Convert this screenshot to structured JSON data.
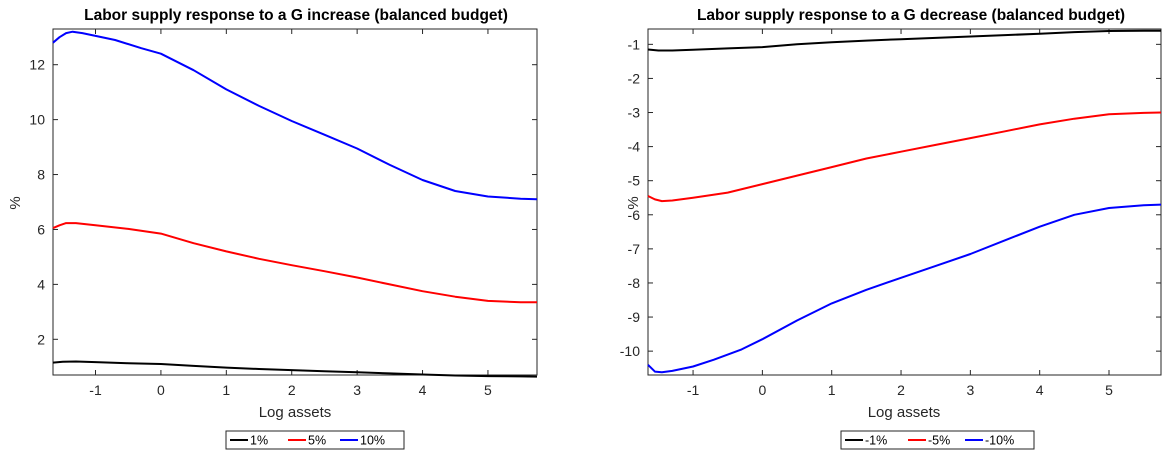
{
  "chart_data": [
    {
      "type": "line",
      "title": "Labor supply response to a G increase (balanced budget)",
      "xlabel": "Log assets",
      "ylabel": "%",
      "xlim": [
        -1.65,
        5.75
      ],
      "ylim": [
        0.7,
        13.3
      ],
      "xticks": [
        -1,
        0,
        1,
        2,
        3,
        4,
        5
      ],
      "yticks": [
        2,
        4,
        6,
        8,
        10,
        12
      ],
      "grid": false,
      "legend_position": "bottom-outside",
      "series": [
        {
          "name": "1%",
          "color": "#000000",
          "x": [
            -1.65,
            -1.5,
            -1.3,
            -1.0,
            -0.5,
            0.0,
            0.5,
            1.0,
            1.5,
            2.0,
            2.5,
            3.0,
            3.5,
            4.0,
            4.5,
            5.0,
            5.5,
            5.75
          ],
          "y": [
            1.15,
            1.18,
            1.19,
            1.17,
            1.13,
            1.1,
            1.03,
            0.97,
            0.92,
            0.88,
            0.84,
            0.8,
            0.76,
            0.72,
            0.68,
            0.66,
            0.65,
            0.64
          ]
        },
        {
          "name": "5%",
          "color": "#ff0000",
          "x": [
            -1.65,
            -1.55,
            -1.45,
            -1.3,
            -1.0,
            -0.5,
            0.0,
            0.5,
            1.0,
            1.5,
            2.0,
            2.5,
            3.0,
            3.5,
            4.0,
            4.5,
            5.0,
            5.5,
            5.75
          ],
          "y": [
            6.05,
            6.15,
            6.23,
            6.23,
            6.15,
            6.02,
            5.85,
            5.5,
            5.2,
            4.93,
            4.7,
            4.48,
            4.25,
            4.0,
            3.75,
            3.55,
            3.4,
            3.35,
            3.35
          ]
        },
        {
          "name": "10%",
          "color": "#0000ff",
          "x": [
            -1.65,
            -1.55,
            -1.45,
            -1.35,
            -1.2,
            -1.0,
            -0.7,
            -0.3,
            0.0,
            0.5,
            1.0,
            1.5,
            2.0,
            2.5,
            3.0,
            3.5,
            4.0,
            4.5,
            5.0,
            5.5,
            5.75
          ],
          "y": [
            12.8,
            13.0,
            13.15,
            13.2,
            13.15,
            13.05,
            12.9,
            12.6,
            12.4,
            11.8,
            11.1,
            10.5,
            9.95,
            9.45,
            8.95,
            8.35,
            7.8,
            7.4,
            7.2,
            7.12,
            7.1
          ]
        }
      ]
    },
    {
      "type": "line",
      "title": "Labor supply response to a G decrease (balanced budget)",
      "xlabel": "Log assets",
      "ylabel": "%",
      "xlim": [
        -1.65,
        5.75
      ],
      "ylim": [
        -10.7,
        -0.55
      ],
      "xticks": [
        -1,
        0,
        1,
        2,
        3,
        4,
        5
      ],
      "yticks": [
        -10,
        -9,
        -8,
        -7,
        -6,
        -5,
        -4,
        -3,
        -2,
        -1
      ],
      "grid": false,
      "legend_position": "bottom-outside",
      "series": [
        {
          "name": "-1%",
          "color": "#000000",
          "x": [
            -1.65,
            -1.5,
            -1.3,
            -1.0,
            -0.5,
            0.0,
            0.5,
            1.0,
            1.5,
            2.0,
            2.5,
            3.0,
            3.5,
            4.0,
            4.5,
            5.0,
            5.5,
            5.75
          ],
          "y": [
            -1.15,
            -1.18,
            -1.18,
            -1.16,
            -1.12,
            -1.08,
            -1.0,
            -0.94,
            -0.89,
            -0.85,
            -0.81,
            -0.77,
            -0.73,
            -0.69,
            -0.64,
            -0.61,
            -0.6,
            -0.6
          ]
        },
        {
          "name": "-5%",
          "color": "#ff0000",
          "x": [
            -1.65,
            -1.55,
            -1.45,
            -1.3,
            -1.0,
            -0.5,
            0.0,
            0.5,
            1.0,
            1.5,
            2.0,
            2.5,
            3.0,
            3.5,
            4.0,
            4.5,
            5.0,
            5.5,
            5.75
          ],
          "y": [
            -5.45,
            -5.55,
            -5.6,
            -5.58,
            -5.5,
            -5.35,
            -5.1,
            -4.85,
            -4.6,
            -4.35,
            -4.15,
            -3.95,
            -3.75,
            -3.55,
            -3.35,
            -3.18,
            -3.05,
            -3.01,
            -3.0
          ]
        },
        {
          "name": "-10%",
          "color": "#0000ff",
          "x": [
            -1.65,
            -1.55,
            -1.45,
            -1.3,
            -1.0,
            -0.7,
            -0.3,
            0.0,
            0.5,
            1.0,
            1.5,
            2.0,
            2.5,
            3.0,
            3.5,
            4.0,
            4.5,
            5.0,
            5.5,
            5.75
          ],
          "y": [
            -10.4,
            -10.6,
            -10.62,
            -10.58,
            -10.45,
            -10.25,
            -9.95,
            -9.65,
            -9.1,
            -8.6,
            -8.2,
            -7.85,
            -7.5,
            -7.15,
            -6.75,
            -6.35,
            -6.0,
            -5.8,
            -5.72,
            -5.7
          ]
        }
      ]
    }
  ]
}
